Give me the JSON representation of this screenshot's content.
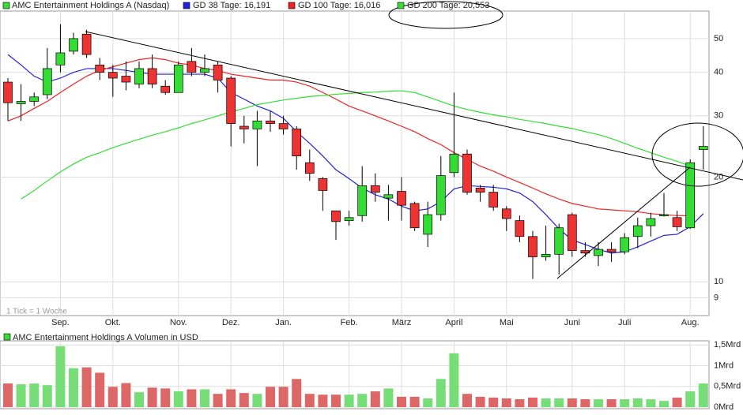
{
  "chart_data": [
    {
      "type": "candlestick",
      "categories": [
        null,
        null,
        null,
        null,
        "Sep.",
        null,
        null,
        null,
        "Okt.",
        null,
        null,
        null,
        null,
        "Nov.",
        null,
        null,
        null,
        "Dez.",
        null,
        null,
        null,
        "Jan.",
        null,
        null,
        null,
        null,
        "Feb.",
        null,
        null,
        null,
        "März",
        null,
        null,
        null,
        "April",
        null,
        null,
        null,
        "Mai",
        null,
        null,
        null,
        null,
        "Juni",
        null,
        null,
        null,
        "Juli",
        null,
        null,
        null,
        null,
        "Aug.",
        null
      ],
      "candles": {
        "name": "AMC Entertainment Holdings A (Nasdaq)",
        "color_up": "#33dd33",
        "color_down": "#ee3333",
        "open": [
          37.5,
          32.5,
          33,
          34.5,
          42,
          46,
          51.5,
          42,
          40,
          39,
          37,
          41,
          36.5,
          35,
          43,
          40,
          42,
          38.5,
          28,
          27.5,
          29,
          28.5,
          27.5,
          22,
          19.8,
          16,
          15,
          15.5,
          18.9,
          17.4,
          18.2,
          16.8,
          13.7,
          15.6,
          20.6,
          23.3,
          18.6,
          18.1,
          16.2,
          15,
          13.5,
          11.8,
          12,
          15.6,
          12.3,
          11.9,
          12.4,
          12.2,
          13.5,
          14.5,
          15.5,
          15.3,
          14.3,
          24
        ],
        "high": [
          38.5,
          37,
          35,
          47,
          55,
          52,
          53,
          44,
          42,
          43,
          43,
          45,
          38,
          43,
          47,
          45,
          43,
          39,
          30,
          31,
          31,
          30,
          28,
          24,
          20,
          16,
          16,
          21.5,
          20.5,
          19,
          20,
          17,
          17,
          23,
          35,
          24,
          19,
          19,
          16.5,
          15.5,
          14,
          14.5,
          14.7,
          15.8,
          13,
          13,
          13,
          13.8,
          15.3,
          15.8,
          18,
          16,
          22.5,
          28
        ],
        "low": [
          29,
          29,
          32,
          33.5,
          40,
          45,
          44,
          38,
          34,
          35.5,
          36,
          36,
          34.5,
          35,
          39,
          39,
          35,
          24.5,
          25,
          21.5,
          27,
          26.5,
          21,
          19.5,
          16,
          13.2,
          14.5,
          14.9,
          17,
          15,
          15,
          14,
          12.6,
          15,
          20,
          17.8,
          17,
          16,
          14,
          13,
          10.2,
          11.5,
          10.5,
          11.8,
          11.8,
          11.1,
          11.4,
          12,
          12.5,
          13.5,
          15.4,
          14,
          14.2,
          21
        ],
        "close": [
          32.7,
          33,
          34,
          41,
          45.5,
          50,
          45,
          40,
          38.5,
          37.5,
          41,
          37,
          35,
          42,
          40,
          41,
          38,
          28.5,
          27.5,
          29,
          28.5,
          27.5,
          23,
          20.5,
          18.3,
          14.9,
          15.3,
          18.9,
          18.1,
          17.8,
          16.6,
          14.3,
          15.6,
          20.2,
          23.3,
          18.1,
          18.1,
          16.4,
          15.2,
          13.5,
          11.8,
          12,
          14.3,
          12.3,
          12.1,
          12.4,
          12.2,
          13.4,
          14.5,
          15.2,
          15.6,
          14.4,
          22,
          24.5
        ]
      },
      "series": [
        {
          "name": "GD 38 Tage: 16,191",
          "color": "#2222dd",
          "values": [
            45,
            42,
            39,
            37.5,
            38.5,
            40,
            41,
            41,
            41,
            40.5,
            40,
            39.5,
            39.5,
            39.5,
            39.5,
            39.5,
            38.5,
            35,
            33.5,
            32,
            31,
            29.5,
            27,
            25,
            23,
            21,
            19.8,
            18.6,
            17.8,
            17.3,
            16.5,
            16,
            16.2,
            17,
            18.5,
            18.9,
            18.8,
            18.7,
            18.5,
            18,
            17,
            15.6,
            14.2,
            13.2,
            12.8,
            12.4,
            12.1,
            12.2,
            12.6,
            13.1,
            13.6,
            13.7,
            14.4,
            15.7
          ]
        },
        {
          "name": "GD 100 Tage: 16,016",
          "color": "#ee2222",
          "values": [
            29,
            30,
            31.5,
            33,
            35,
            37,
            39,
            40.5,
            41.5,
            42.5,
            43.5,
            44,
            43.5,
            42.5,
            42,
            41,
            40.5,
            39.5,
            39,
            38.5,
            38,
            38,
            37.5,
            36.5,
            35,
            33.5,
            32,
            31,
            30,
            29,
            28,
            27,
            25.8,
            24.8,
            23.5,
            22.5,
            21.5,
            20.8,
            20,
            19.3,
            18.6,
            17.9,
            17.3,
            16.8,
            16.5,
            16.2,
            16.1,
            16,
            15.9,
            15.7,
            15.6,
            15.5,
            15.5,
            null
          ]
        },
        {
          "name": "GD 200 Tage: 20,553",
          "color": "#33dd33",
          "values": [
            null,
            17.3,
            18.3,
            19.5,
            20.7,
            21.8,
            22.8,
            23.5,
            24.3,
            25,
            25.7,
            26.4,
            27,
            27.7,
            28.5,
            29.2,
            30,
            30.8,
            31.5,
            32.3,
            32.8,
            33.3,
            33.7,
            34.1,
            34.3,
            34.6,
            34.8,
            35,
            35.1,
            35.3,
            35.4,
            35,
            34,
            33,
            32,
            31.3,
            30.7,
            30.2,
            29.8,
            29.3,
            28.9,
            28.5,
            28,
            27.6,
            27,
            26.5,
            25.8,
            25,
            24.2,
            23.5,
            22.8,
            22.2,
            21.5,
            null
          ]
        }
      ],
      "ylim": [
        8,
        60
      ],
      "yticks": [
        9,
        10,
        20,
        30,
        40,
        50
      ],
      "log_scale": true,
      "grid": true,
      "note": "1 Tick = 1 Woche"
    },
    {
      "type": "bar",
      "title": "AMC Entertainment Holdings A Volumen in USD",
      "legend_color": "#33dd33",
      "color_up": "#77dd77",
      "color_down": "#dd6666",
      "values": [
        0.57,
        0.55,
        0.57,
        0.53,
        1.47,
        0.94,
        0.96,
        0.83,
        0.49,
        0.58,
        0.36,
        0.47,
        0.45,
        0.38,
        0.43,
        0.43,
        0.32,
        0.43,
        0.34,
        0.32,
        0.49,
        0.49,
        0.68,
        0.32,
        0.3,
        0.3,
        0.3,
        0.32,
        0.38,
        0.45,
        0.25,
        0.25,
        0.21,
        0.68,
        1.3,
        0.32,
        0.25,
        0.23,
        0.21,
        0.19,
        0.23,
        0.21,
        0.21,
        0.21,
        0.19,
        0.19,
        0.19,
        0.19,
        0.21,
        0.19,
        0.15,
        0.23,
        0.38,
        0.57
      ],
      "ylim": [
        0,
        1.6
      ],
      "yticks": [
        {
          "value": 0,
          "label": "0Mrd"
        },
        {
          "value": 0.5,
          "label": "0,5Mrd"
        },
        {
          "value": 1,
          "label": "1Mrd"
        },
        {
          "value": 1.5,
          "label": "1,5Mrd"
        }
      ],
      "grid": true
    }
  ]
}
